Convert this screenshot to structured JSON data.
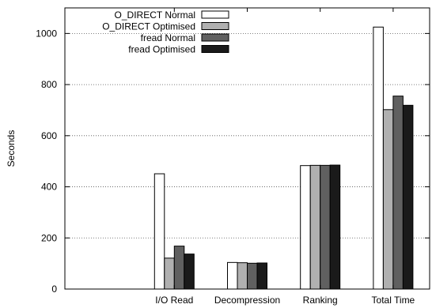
{
  "chart_data": {
    "type": "bar",
    "title": "",
    "xlabel": "",
    "ylabel": "Seconds",
    "ylim": [
      0,
      1100
    ],
    "yticks": [
      0,
      200,
      400,
      600,
      800,
      1000
    ],
    "grid": "horizontal-dotted",
    "legend_position": "top-center",
    "categories": [
      "",
      "I/O Read",
      "Decompression",
      "Ranking",
      "Total Time"
    ],
    "series": [
      {
        "name": "O_DIRECT Normal",
        "color": "#ffffff",
        "values": [
          null,
          451,
          104,
          483,
          1025
        ]
      },
      {
        "name": "O_DIRECT Optimised",
        "color": "#b0b0b0",
        "values": [
          null,
          121,
          103,
          484,
          702
        ]
      },
      {
        "name": "fread Normal",
        "color": "#606060",
        "values": [
          null,
          168,
          101,
          484,
          755
        ]
      },
      {
        "name": "fread Optimised",
        "color": "#1a1a1a",
        "values": [
          null,
          137,
          102,
          485,
          719
        ]
      }
    ]
  }
}
